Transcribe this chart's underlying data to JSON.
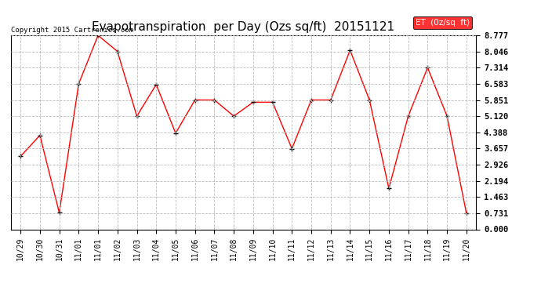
{
  "title": "Evapotranspiration  per Day (Ozs sq/ft)  20151121",
  "copyright": "Copyright 2015 Cartronics.com",
  "legend_label": "ET  (0z/sq  ft)",
  "x_labels": [
    "10/29",
    "10/30",
    "10/31",
    "11/01",
    "11/01",
    "11/02",
    "11/03",
    "11/04",
    "11/05",
    "11/06",
    "11/07",
    "11/08",
    "11/09",
    "11/10",
    "11/11",
    "11/12",
    "11/13",
    "11/14",
    "11/15",
    "11/16",
    "11/17",
    "11/18",
    "11/19",
    "11/20"
  ],
  "y_values": [
    3.3,
    4.25,
    0.75,
    6.58,
    8.77,
    8.05,
    5.12,
    6.55,
    4.35,
    5.85,
    5.85,
    5.12,
    5.75,
    5.75,
    3.65,
    5.85,
    5.85,
    8.1,
    5.85,
    1.85,
    5.12,
    7.31,
    5.12,
    0.73
  ],
  "y_ticks": [
    0.0,
    0.731,
    1.463,
    2.194,
    2.926,
    3.657,
    4.388,
    5.12,
    5.851,
    6.583,
    7.314,
    8.046,
    8.777
  ],
  "ylim": [
    0.0,
    8.777
  ],
  "line_color": "red",
  "marker_color": "black",
  "marker": "+",
  "grid_color": "#bbbbbb",
  "bg_color": "white",
  "title_fontsize": 11,
  "copyright_fontsize": 6.5,
  "tick_fontsize": 7,
  "legend_bg": "red",
  "legend_text_color": "white",
  "legend_fontsize": 7.5
}
